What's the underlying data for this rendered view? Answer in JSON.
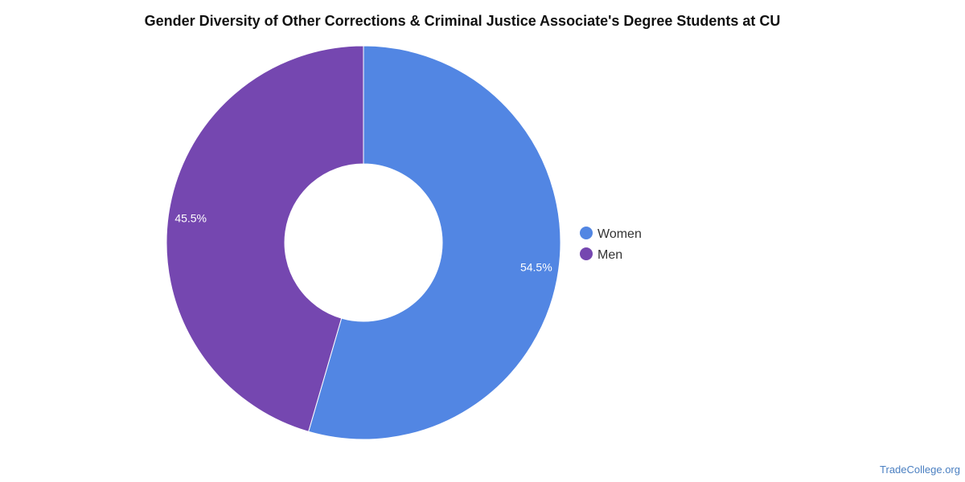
{
  "chart_data": {
    "type": "pie",
    "variant": "donut",
    "title": "Gender Diversity of Other Corrections & Criminal Justice Associate's Degree Students at CU",
    "categories": [
      "Women",
      "Men"
    ],
    "values": [
      54.5,
      45.5
    ],
    "value_labels": [
      "54.5%",
      "45.5%"
    ],
    "colors": [
      "#5286e3",
      "#7547b0"
    ],
    "legend_position": "right"
  },
  "source": "TradeCollege.org"
}
